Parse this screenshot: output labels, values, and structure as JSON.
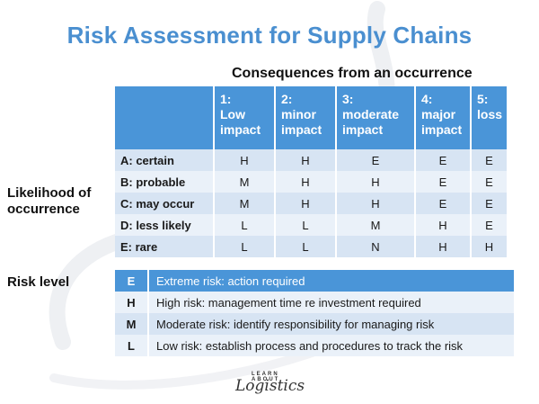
{
  "title": "Risk Assessment for Supply Chains",
  "subtitle": "Consequences from an occurrence",
  "likelihood_label_line1": "Likelihood of",
  "likelihood_label_line2": "occurrence",
  "risk_level_label": "Risk level",
  "columns": [
    {
      "line1": "1:",
      "line2": "Low",
      "line3": "impact"
    },
    {
      "line1": "2:",
      "line2": "minor",
      "line3": "impact"
    },
    {
      "line1": "3:",
      "line2": "moderate",
      "line3": "impact"
    },
    {
      "line1": "4:",
      "line2": "major",
      "line3": "impact"
    },
    {
      "line1": "5:",
      "line2": "loss",
      "line3": ""
    }
  ],
  "rows": [
    {
      "label": "A: certain",
      "cells": [
        "H",
        "H",
        "E",
        "E",
        "E"
      ]
    },
    {
      "label": "B: probable",
      "cells": [
        "M",
        "H",
        "H",
        "E",
        "E"
      ]
    },
    {
      "label": "C: may occur",
      "cells": [
        "M",
        "H",
        "H",
        "E",
        "E"
      ]
    },
    {
      "label": "D: less likely",
      "cells": [
        "L",
        "L",
        "M",
        "H",
        "E"
      ]
    },
    {
      "label": "E: rare",
      "cells": [
        "L",
        "L",
        "N",
        "H",
        "H"
      ]
    }
  ],
  "legend": [
    {
      "code": "E",
      "desc": "Extreme risk: action required"
    },
    {
      "code": "H",
      "desc": "High risk: management time re investment required"
    },
    {
      "code": "M",
      "desc": "Moderate risk: identify responsibility for managing risk"
    },
    {
      "code": "L",
      "desc": "Low risk: establish process and procedures to track the risk"
    }
  ],
  "logo": {
    "top": "LEARN ABOUT",
    "main": "Logistics"
  },
  "colors": {
    "accent": "#4a95d8",
    "title": "#4a8fd0",
    "row_dark": "#d7e4f3",
    "row_light": "#eaf1f9"
  }
}
